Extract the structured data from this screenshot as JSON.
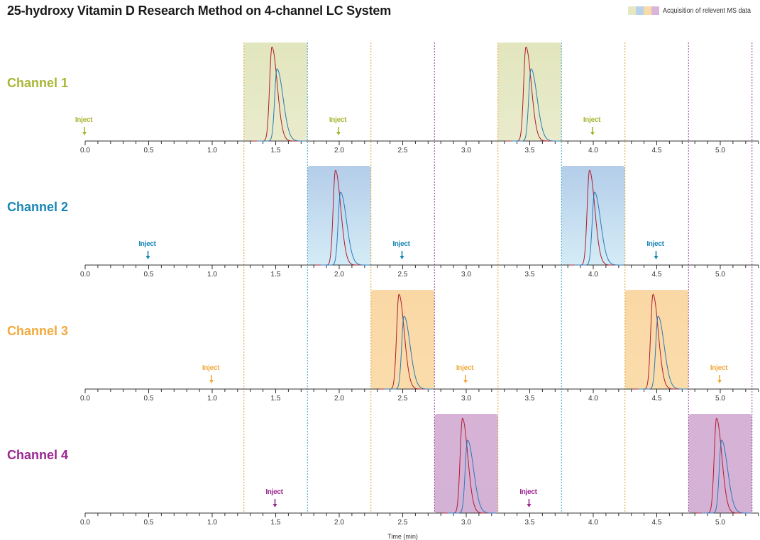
{
  "title": "25-hydroxy Vitamin D Research Method on 4-channel LC System",
  "legend": {
    "label": "Acquisition of relevent MS data",
    "swatches": [
      "#e5e8c3",
      "#b8d2ea",
      "#f9dba8",
      "#d9b6d9"
    ]
  },
  "chart_data": {
    "type": "line",
    "xlabel": "Time (min)",
    "xlim": [
      0,
      5.3
    ],
    "x_ticks": [
      "0.0",
      "0.5",
      "1.0",
      "1.5",
      "2.0",
      "2.5",
      "3.0",
      "3.5",
      "4.0",
      "4.5",
      "5.0"
    ],
    "inject_label": "Inject",
    "series_colors": {
      "red": "#b01c2e",
      "blue": "#2a7ab8"
    },
    "divider_lines": [
      {
        "x": 1.25,
        "color": "#e0a030"
      },
      {
        "x": 1.75,
        "color": "#3aa6c8"
      },
      {
        "x": 2.25,
        "color": "#e0a030"
      },
      {
        "x": 2.75,
        "color": "#9a3d9a"
      },
      {
        "x": 3.25,
        "color": "#e0a030"
      },
      {
        "x": 3.75,
        "color": "#3aa6c8"
      },
      {
        "x": 4.25,
        "color": "#e0a030"
      },
      {
        "x": 4.75,
        "color": "#9a3d9a"
      },
      {
        "x": 5.25,
        "color": "#9a3d9a"
      }
    ],
    "channels": [
      {
        "name": "Channel 1",
        "color": "#a9b534",
        "window_color_top": "#e2e6bd",
        "window_color_bottom": "#e9ebcc",
        "injects": [
          0.0,
          2.0,
          4.0
        ],
        "windows": [
          [
            1.25,
            1.75
          ],
          [
            3.25,
            3.75
          ]
        ],
        "peaks_red": [
          1.47,
          3.47
        ],
        "peaks_blue": [
          1.51,
          3.51
        ]
      },
      {
        "name": "Channel 2",
        "color": "#1786b5",
        "window_color_top": "#b4cde9",
        "window_color_bottom": "#d4ecf6",
        "injects": [
          0.5,
          2.5,
          4.5
        ],
        "windows": [
          [
            1.75,
            2.25
          ],
          [
            3.75,
            4.25
          ]
        ],
        "peaks_red": [
          1.97,
          3.97
        ],
        "peaks_blue": [
          2.01,
          4.01
        ]
      },
      {
        "name": "Channel 3",
        "color": "#f2a93b",
        "window_color_top": "#fad8a6",
        "window_color_bottom": "#fadcaa",
        "injects": [
          1.0,
          3.0,
          5.0
        ],
        "windows": [
          [
            2.25,
            2.75
          ],
          [
            4.25,
            4.75
          ]
        ],
        "peaks_red": [
          2.47,
          4.47
        ],
        "peaks_blue": [
          2.51,
          4.51
        ]
      },
      {
        "name": "Channel 4",
        "color": "#9b2691",
        "window_color_top": "#d6b3d6",
        "window_color_bottom": "#d4b2d6",
        "injects": [
          1.5,
          3.5
        ],
        "windows": [
          [
            2.75,
            3.25
          ],
          [
            4.75,
            5.25
          ]
        ],
        "peaks_red": [
          2.97,
          4.97
        ],
        "peaks_blue": [
          3.01,
          5.01
        ]
      }
    ]
  }
}
